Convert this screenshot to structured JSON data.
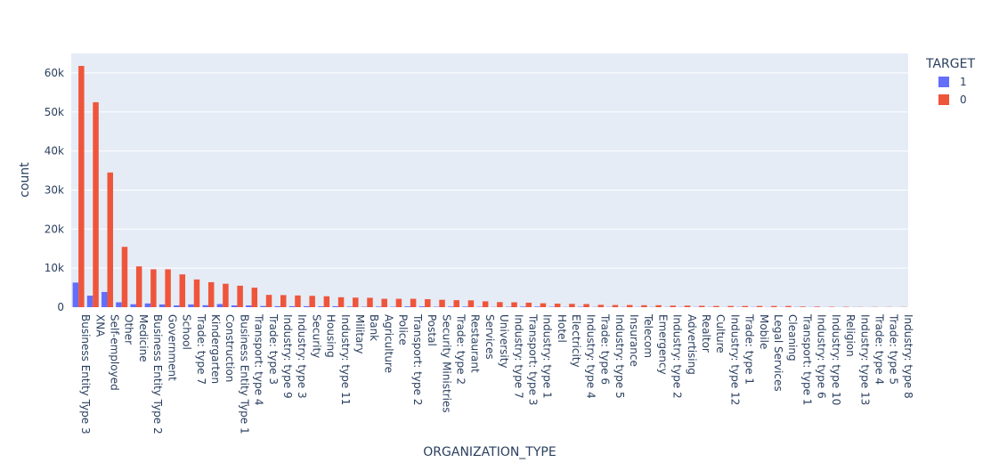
{
  "chart_data": {
    "type": "bar",
    "barmode": "group",
    "xlabel": "ORGANIZATION_TYPE",
    "ylabel": "count",
    "ylim": [
      0,
      65000
    ],
    "yticks": [
      0,
      10000,
      20000,
      30000,
      40000,
      50000,
      60000
    ],
    "ytick_labels": [
      "0",
      "10k",
      "20k",
      "30k",
      "40k",
      "50k",
      "60k"
    ],
    "grid": true,
    "legend": {
      "title": "TARGET",
      "placement": "top-right"
    },
    "categories": [
      "Business Entity Type 3",
      "XNA",
      "Self-employed",
      "Other",
      "Medicine",
      "Business Entity Type 2",
      "Government",
      "School",
      "Trade: type 7",
      "Kindergarten",
      "Construction",
      "Business Entity Type 1",
      "Transport: type 4",
      "Trade: type 3",
      "Industry: type 9",
      "Industry: type 3",
      "Security",
      "Housing",
      "Industry: type 11",
      "Military",
      "Bank",
      "Agriculture",
      "Police",
      "Transport: type 2",
      "Postal",
      "Security Ministries",
      "Trade: type 2",
      "Restaurant",
      "Services",
      "University",
      "Industry: type 7",
      "Transport: type 3",
      "Industry: type 1",
      "Hotel",
      "Electricity",
      "Industry: type 4",
      "Trade: type 6",
      "Industry: type 5",
      "Insurance",
      "Telecom",
      "Emergency",
      "Industry: type 2",
      "Advertising",
      "Realtor",
      "Culture",
      "Industry: type 12",
      "Trade: type 1",
      "Mobile",
      "Legal Services",
      "Cleaning",
      "Transport: type 1",
      "Industry: type 6",
      "Industry: type 10",
      "Religion",
      "Industry: type 13",
      "Trade: type 4",
      "Trade: type 5",
      "Industry: type 8"
    ],
    "series": [
      {
        "name": "1",
        "color": "#636efa",
        "values": [
          6300,
          2950,
          3900,
          1250,
          750,
          950,
          700,
          450,
          700,
          500,
          800,
          450,
          450,
          300,
          250,
          250,
          250,
          200,
          250,
          150,
          100,
          150,
          100,
          200,
          200,
          100,
          150,
          150,
          100,
          50,
          100,
          150,
          150,
          100,
          50,
          100,
          50,
          50,
          50,
          50,
          50,
          50,
          50,
          50,
          50,
          20,
          50,
          50,
          30,
          30,
          50,
          30,
          20,
          20,
          30,
          10,
          10,
          10
        ]
      },
      {
        "name": "0",
        "color": "#ef553b",
        "values": [
          61800,
          52500,
          34500,
          15450,
          10450,
          9700,
          9700,
          8400,
          7100,
          6400,
          6000,
          5500,
          5000,
          3150,
          3100,
          3000,
          2900,
          2800,
          2550,
          2450,
          2400,
          2150,
          2150,
          2150,
          2050,
          1900,
          1800,
          1750,
          1500,
          1300,
          1250,
          1150,
          1000,
          900,
          850,
          800,
          600,
          550,
          550,
          500,
          500,
          400,
          400,
          350,
          300,
          300,
          300,
          300,
          300,
          300,
          150,
          150,
          100,
          100,
          50,
          50,
          50,
          50
        ]
      }
    ]
  }
}
